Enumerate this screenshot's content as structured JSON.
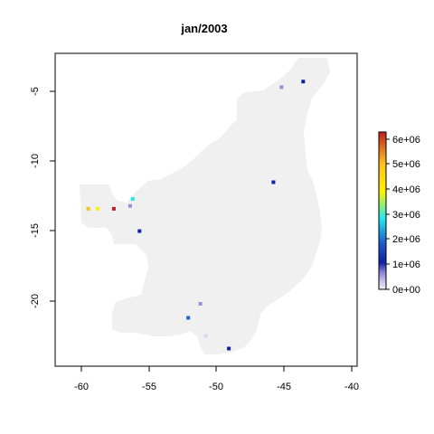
{
  "title": "jan/2003",
  "x_ticks": [
    "-60",
    "-55",
    "-50",
    "-45",
    "-40"
  ],
  "y_ticks": [
    "-5",
    "-10",
    "-15",
    "-20"
  ],
  "legend_ticks": [
    "6e+06",
    "5e+06",
    "4e+06",
    "3e+06",
    "2e+06",
    "1e+06",
    "0e+00"
  ],
  "chart_data": {
    "type": "heatmap",
    "title": "jan/2003",
    "xlim": [
      -62,
      -39.7
    ],
    "ylim": [
      -24.6,
      -2.6
    ],
    "value_range": [
      0,
      6400000
    ],
    "land_color": "#f0f0f0",
    "colors": {
      "low": "#d8d8ee",
      "mid_violet": "#9b8ddc",
      "dark_blue": "#1020a8",
      "blue": "#2060d0",
      "cyan": "#22e8f0",
      "yellow": "#fff200",
      "orange": "#ffbf20",
      "red": "#c02020"
    },
    "points": [
      {
        "lon": -43.6,
        "lat": -4.3,
        "value": 1300000
      },
      {
        "lon": -45.2,
        "lat": -4.7,
        "value": 700000
      },
      {
        "lon": -45.8,
        "lat": -11.5,
        "value": 1400000
      },
      {
        "lon": -56.2,
        "lat": -12.7,
        "value": 2900000
      },
      {
        "lon": -56.4,
        "lat": -13.2,
        "value": 700000
      },
      {
        "lon": -57.6,
        "lat": -13.4,
        "value": 6200000
      },
      {
        "lon": -58.8,
        "lat": -13.4,
        "value": 4500000
      },
      {
        "lon": -59.5,
        "lat": -13.4,
        "value": 4600000
      },
      {
        "lon": -55.7,
        "lat": -15.0,
        "value": 1500000
      },
      {
        "lon": -51.2,
        "lat": -20.2,
        "value": 700000
      },
      {
        "lon": -52.1,
        "lat": -21.2,
        "value": 2000000
      },
      {
        "lon": -50.8,
        "lat": -22.5,
        "value": 300000
      },
      {
        "lon": -49.1,
        "lat": -23.4,
        "value": 1500000
      }
    ]
  }
}
